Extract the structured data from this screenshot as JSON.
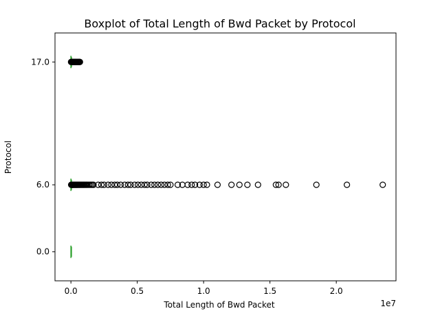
{
  "chart_data": {
    "type": "boxplot",
    "orientation": "horizontal",
    "title": "Boxplot of Total Length of Bwd Packet by Protocol",
    "xlabel": "Total Length of Bwd Packet",
    "ylabel": "Protocol",
    "x_offset_label": "1e7",
    "xlim": [
      -1200000,
      24500000
    ],
    "x_ticks": [
      0,
      5000000,
      10000000,
      15000000,
      20000000
    ],
    "x_tick_labels": [
      "0.0",
      "0.5",
      "1.0",
      "1.5",
      "2.0"
    ],
    "categories": [
      "0.0",
      "6.0",
      "17.0"
    ],
    "category_values": [
      0,
      6,
      17
    ],
    "ylim": [
      -2.6,
      19.6
    ],
    "grid": false,
    "median_color": "#2ca02c",
    "series": [
      {
        "category": "0.0",
        "whisker_low": 0,
        "q1": 0,
        "median": 0,
        "q3": 0,
        "whisker_high": 0,
        "fliers": []
      },
      {
        "category": "6.0",
        "whisker_low": 0,
        "q1": 0,
        "median": 0,
        "q3": 0,
        "whisker_high": 2000,
        "fliers": [
          20000,
          40000,
          60000,
          80000,
          100000,
          130000,
          160000,
          190000,
          220000,
          260000,
          300000,
          340000,
          380000,
          420000,
          460000,
          500000,
          550000,
          600000,
          650000,
          700000,
          760000,
          820000,
          880000,
          940000,
          1000000,
          1070000,
          1140000,
          1210000,
          1300000,
          1400000,
          1500000,
          1600000,
          1700000,
          2050000,
          2300000,
          2500000,
          2800000,
          3050000,
          3300000,
          3500000,
          3750000,
          4050000,
          4300000,
          4500000,
          4800000,
          5050000,
          5300000,
          5550000,
          5750000,
          6050000,
          6300000,
          6550000,
          6800000,
          7050000,
          7300000,
          7500000,
          8050000,
          8400000,
          8800000,
          9100000,
          9350000,
          9700000,
          10000000,
          10250000,
          11050000,
          12100000,
          12700000,
          13300000,
          14100000,
          15450000,
          15650000,
          16200000,
          18500000,
          20800000,
          23500000
        ]
      },
      {
        "category": "17.0",
        "whisker_low": 0,
        "q1": 0,
        "median": 0,
        "q3": 0,
        "whisker_high": 2000,
        "fliers": [
          10000,
          30000,
          50000,
          80000,
          110000,
          150000,
          190000,
          230000,
          270000,
          310000,
          350000,
          390000,
          430000,
          480000,
          520000,
          570000,
          610000,
          650000,
          680000
        ]
      }
    ]
  }
}
